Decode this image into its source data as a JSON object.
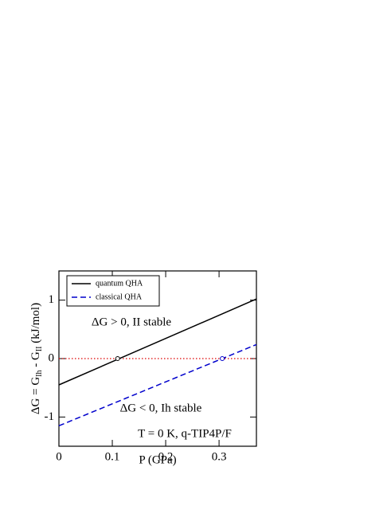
{
  "chart_data": {
    "type": "line",
    "xlabel": "P (GPa)",
    "ylabel_parts": [
      "ΔG = G",
      "Ih",
      " - G",
      "II",
      " (kJ/mol)"
    ],
    "x": [
      0,
      0.37
    ],
    "series": [
      {
        "name": "quantum QHA",
        "color": "#000000",
        "dash": "solid",
        "values": [
          -0.45,
          1.02
        ]
      },
      {
        "name": "classical QHA",
        "color": "#0000cc",
        "dash": "dashed",
        "values": [
          -1.15,
          0.24
        ]
      }
    ],
    "crossings": {
      "x": [
        0.11,
        0.306
      ],
      "y": [
        0,
        0
      ]
    },
    "reference_line": {
      "value": 0,
      "color": "#dd0000"
    },
    "annotations": [
      "ΔG > 0, II stable",
      "ΔG < 0, Ih stable",
      "T = 0 K, q-TIP4P/F"
    ],
    "xlim": [
      0,
      0.37
    ],
    "xticks": [
      0,
      0.1,
      0.2,
      0.3
    ],
    "ylim": [
      -1.5,
      1.5
    ],
    "yticks": [
      -1,
      0,
      1
    ],
    "legend": "upper left"
  }
}
